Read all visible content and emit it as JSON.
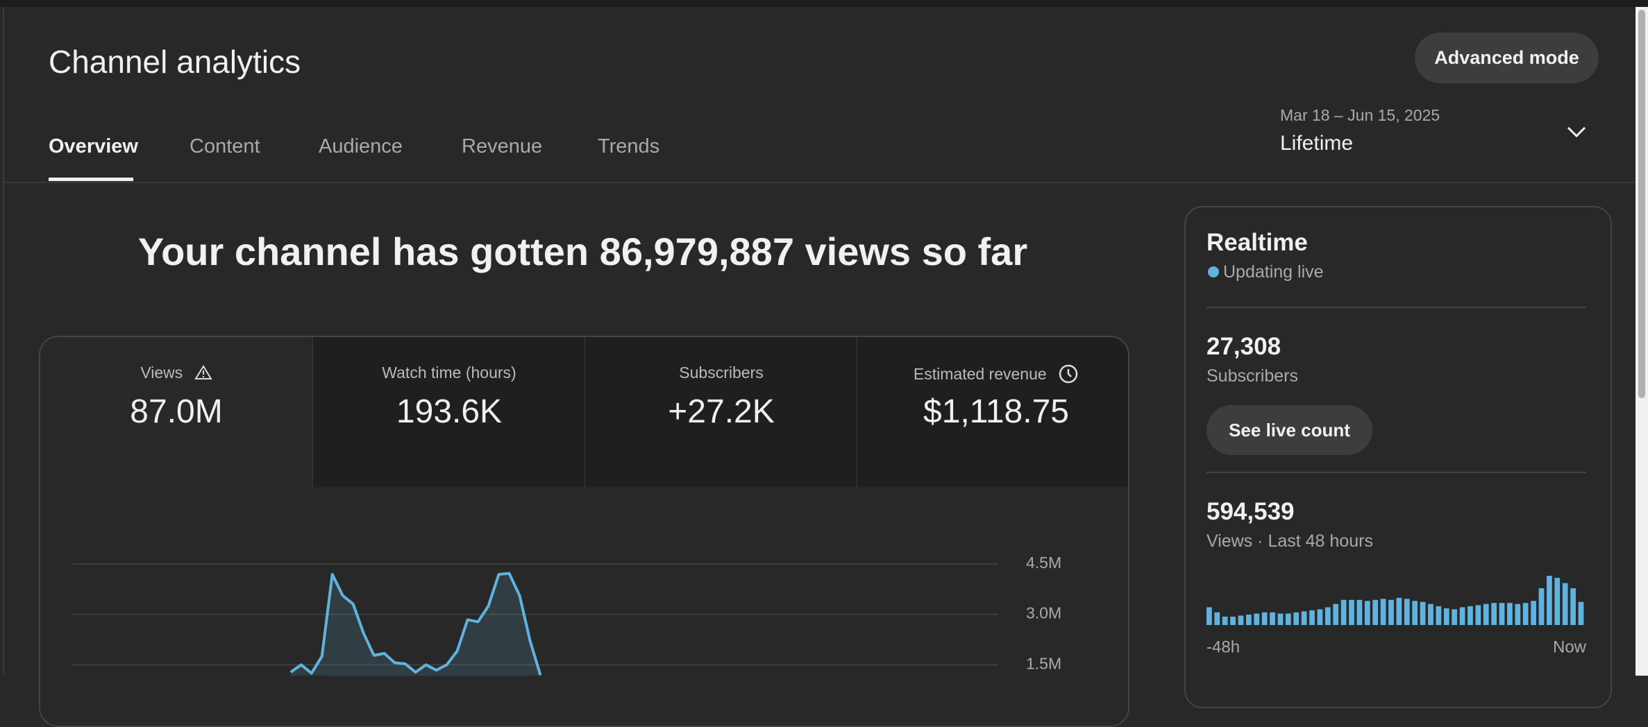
{
  "header": {
    "title": "Channel analytics",
    "advanced_button": "Advanced mode"
  },
  "tabs": [
    "Overview",
    "Content",
    "Audience",
    "Revenue",
    "Trends"
  ],
  "date_range": {
    "range": "Mar 18 – Jun 15, 2025",
    "period": "Lifetime"
  },
  "headline": "Your channel has gotten 86,979,887 views so far",
  "metrics": [
    {
      "label": "Views",
      "value": "87.0M"
    },
    {
      "label": "Watch time (hours)",
      "value": "193.6K"
    },
    {
      "label": "Subscribers",
      "value": "+27.2K"
    },
    {
      "label": "Estimated revenue",
      "value": "$1,118.75"
    }
  ],
  "realtime": {
    "title": "Realtime",
    "status": "Updating live",
    "subscribers": {
      "value": "27,308",
      "label": "Subscribers"
    },
    "live_count_button": "See live count",
    "views": {
      "value": "594,539",
      "label": "Views · Last 48 hours"
    }
  },
  "chart_data": [
    {
      "type": "line",
      "color": "#5fb3de",
      "values": [
        null,
        null,
        null,
        null,
        null,
        null,
        null,
        null,
        null,
        null,
        null,
        null,
        null,
        null,
        null,
        null,
        null,
        null,
        null,
        null,
        null,
        1280000,
        1500000,
        1250000,
        1750000,
        4190000,
        3560000,
        3310000,
        2440000,
        1780000,
        1840000,
        1560000,
        1530000,
        1280000,
        1500000,
        1340000,
        1500000,
        1910000,
        2840000,
        2780000,
        3250000,
        4190000,
        4220000,
        3560000,
        2220000,
        1190000,
        null,
        null,
        null,
        null,
        null,
        null,
        null,
        null,
        null,
        null,
        null,
        null,
        null,
        null,
        null,
        null,
        null,
        null,
        null,
        null,
        null,
        null,
        null,
        null,
        null,
        null,
        null,
        null,
        null,
        null,
        null,
        null,
        null,
        null,
        null,
        null,
        null,
        null,
        null,
        null,
        null,
        null,
        null,
        null
      ],
      "ylim": [
        0,
        4500000
      ],
      "yticks": [
        {
          "value": 1500000,
          "label": "1.5M"
        },
        {
          "value": 3000000,
          "label": "3.0M"
        },
        {
          "value": 4500000,
          "label": "4.5M"
        }
      ],
      "grid": true
    },
    {
      "type": "bar",
      "color": "#5fb3de",
      "values": [
        10400,
        7400,
        4900,
        4900,
        5500,
        6100,
        6700,
        7400,
        7400,
        6700,
        6700,
        7400,
        8000,
        8600,
        9200,
        10400,
        12300,
        14700,
        14700,
        14700,
        14100,
        14700,
        15300,
        14700,
        15900,
        15300,
        14100,
        13500,
        12300,
        11000,
        9800,
        9200,
        10400,
        11000,
        11600,
        12300,
        12900,
        12900,
        12900,
        12300,
        12900,
        14100,
        21500,
        28800,
        27600,
        24500,
        21500,
        13500
      ],
      "xlabels": [
        "-48h",
        "Now"
      ]
    }
  ]
}
